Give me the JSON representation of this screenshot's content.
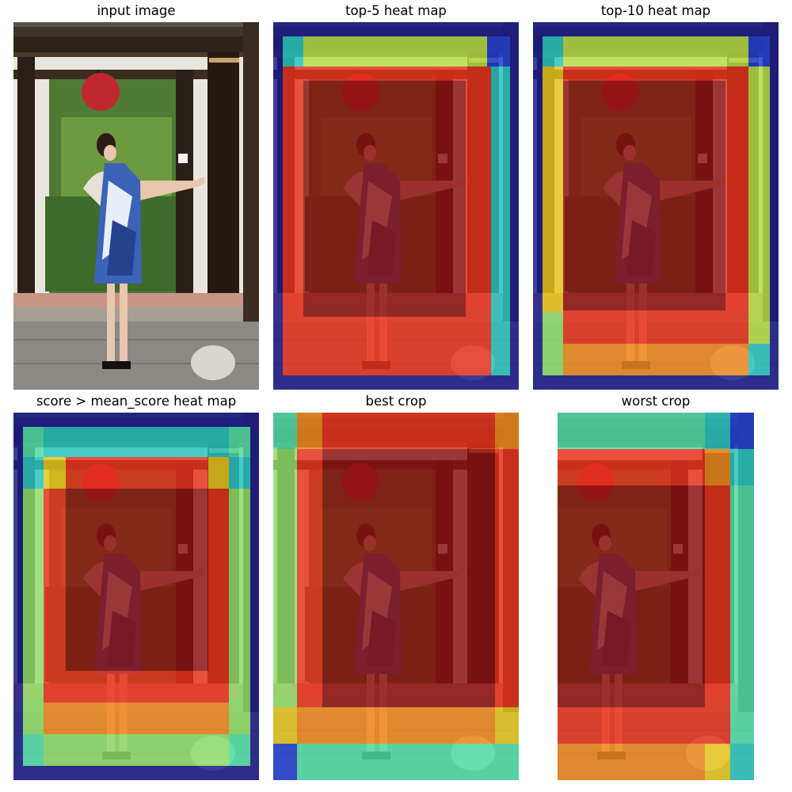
{
  "figure": {
    "panels": [
      {
        "title": "input image"
      },
      {
        "title": "top-5 heat map"
      },
      {
        "title": "top-10 heat map"
      },
      {
        "title": "score > mean_score heat map"
      },
      {
        "title": "best crop"
      },
      {
        "title": "worst crop"
      }
    ],
    "colormap": "jet",
    "colors": {
      "dark_blue": "#1a1a8c",
      "blue": "#1f3fd6",
      "cyan": "#27c7c4",
      "cyan_green": "#4fe0a8",
      "green": "#8ee06a",
      "yellow_green": "#b8e046",
      "yellow": "#e8c81c",
      "orange": "#f08a1c",
      "red": "#e8301c",
      "dark_red": "#8a1010"
    },
    "scene_colors": {
      "roof_tile": "#3b3530",
      "wood_beam": "#2e231b",
      "wall": "#ece9e4",
      "lantern": "#c0272d",
      "foliage": "#3f6b2a",
      "pavement": "#8d8a86",
      "dress": "#3b63b8",
      "skin": "#e9c6ae"
    }
  }
}
